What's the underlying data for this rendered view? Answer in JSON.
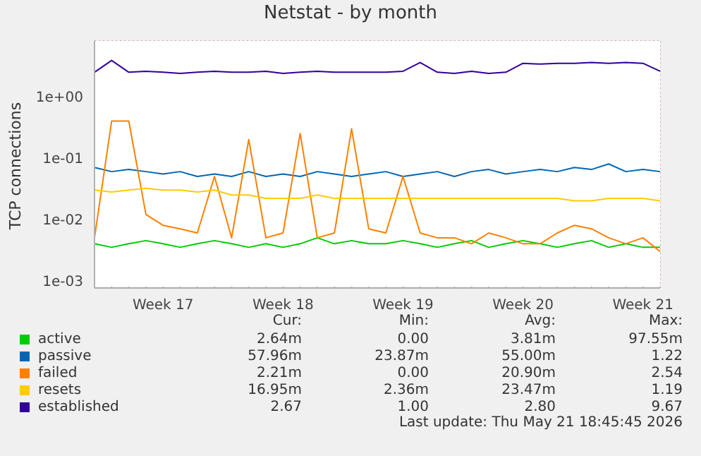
{
  "chart_data": {
    "type": "line",
    "title": "Netstat - by month",
    "ylabel": "TCP connections",
    "categories": [
      null,
      null,
      null,
      null,
      "Week 17",
      null,
      null,
      null,
      null,
      null,
      null,
      "Week 18",
      null,
      null,
      null,
      null,
      null,
      null,
      "Week 19",
      null,
      null,
      null,
      null,
      null,
      null,
      "Week 20",
      null,
      null,
      null,
      null,
      null,
      null,
      "Week 21",
      null
    ],
    "log": "y",
    "ylim": [
      0.00076,
      8.1
    ],
    "yticks": [
      {
        "value": 0.001,
        "label": "1e-03"
      },
      {
        "value": 0.01,
        "label": "1e-02"
      },
      {
        "value": 0.1,
        "label": "1e-01"
      },
      {
        "value": 1,
        "label": "1e+00"
      }
    ],
    "grid": true,
    "legend": "bottom",
    "series": [
      {
        "name": "active",
        "color": "#00cc00",
        "values": [
          0.004,
          0.0035,
          0.004,
          0.0045,
          0.004,
          0.0035,
          0.004,
          0.0045,
          0.004,
          0.0035,
          0.004,
          0.0035,
          0.004,
          0.005,
          0.004,
          0.0045,
          0.004,
          0.004,
          0.0045,
          0.004,
          0.0035,
          0.004,
          0.0045,
          0.0035,
          0.004,
          0.0045,
          0.004,
          0.0035,
          0.004,
          0.0045,
          0.0035,
          0.004,
          0.0035,
          0.0035
        ]
      },
      {
        "name": "passive",
        "color": "#0066b3",
        "values": [
          0.07,
          0.06,
          0.065,
          0.06,
          0.055,
          0.06,
          0.05,
          0.055,
          0.05,
          0.06,
          0.05,
          0.055,
          0.05,
          0.06,
          0.055,
          0.05,
          0.055,
          0.06,
          0.05,
          0.055,
          0.06,
          0.05,
          0.06,
          0.065,
          0.055,
          0.06,
          0.065,
          0.06,
          0.07,
          0.065,
          0.08,
          0.06,
          0.065,
          0.06
        ]
      },
      {
        "name": "failed",
        "color": "#ff8000",
        "values": [
          0.005,
          0.4,
          0.4,
          0.012,
          0.008,
          0.007,
          0.006,
          0.05,
          0.005,
          0.2,
          0.005,
          0.006,
          0.25,
          0.005,
          0.006,
          0.3,
          0.007,
          0.006,
          0.05,
          0.006,
          0.005,
          0.005,
          0.004,
          0.006,
          0.005,
          0.004,
          0.004,
          0.006,
          0.008,
          0.007,
          0.005,
          0.004,
          0.005,
          0.003
        ]
      },
      {
        "name": "resets",
        "color": "#ffcc00",
        "values": [
          0.03,
          0.028,
          0.03,
          0.032,
          0.03,
          0.03,
          0.028,
          0.03,
          0.025,
          0.025,
          0.022,
          0.022,
          0.022,
          0.025,
          0.022,
          0.022,
          0.022,
          0.022,
          0.022,
          0.022,
          0.022,
          0.022,
          0.022,
          0.022,
          0.022,
          0.022,
          0.022,
          0.022,
          0.02,
          0.02,
          0.022,
          0.022,
          0.022,
          0.02
        ]
      },
      {
        "name": "established",
        "color": "#330099",
        "values": [
          2.5,
          3.9,
          2.5,
          2.6,
          2.5,
          2.4,
          2.5,
          2.6,
          2.5,
          2.5,
          2.6,
          2.4,
          2.5,
          2.6,
          2.5,
          2.5,
          2.5,
          2.5,
          2.6,
          3.6,
          2.5,
          2.4,
          2.6,
          2.4,
          2.5,
          3.5,
          3.4,
          3.5,
          3.5,
          3.6,
          3.5,
          3.6,
          3.5,
          2.6
        ]
      }
    ],
    "annotations": [
      "Cur:",
      "Min:",
      "Avg:",
      "Max:",
      "2.64m",
      "0.00",
      "3.81m",
      "97.55m",
      "57.96m",
      "23.87m",
      "55.00m",
      "1.22",
      "2.21m",
      "0.00",
      "20.90m",
      "2.54",
      "16.95m",
      "2.36m",
      "23.47m",
      "1.19",
      "2.67",
      "1.00",
      "2.80",
      "9.67",
      "Last update: Thu May 21 18:45:45 2026"
    ]
  }
}
